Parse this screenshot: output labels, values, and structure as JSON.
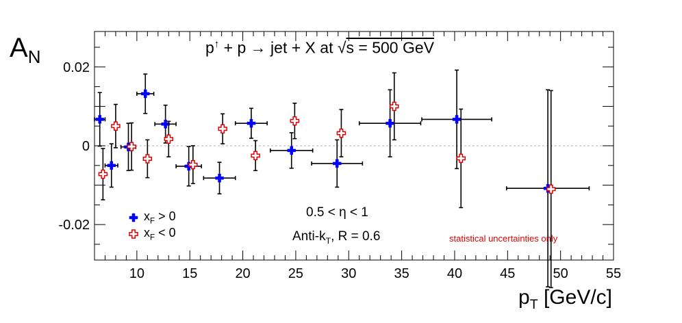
{
  "chart_data": {
    "type": "scatter",
    "title": "p↑ + p → jet + X at √s = 500 GeV",
    "title_parts": {
      "p": "p",
      "arrow": "↑",
      "rest": " + p → jet + X at ",
      "sqrt": "√",
      "s": "s = 500 GeV"
    },
    "xlabel": "p",
    "xlabel_sub": "T",
    "xlabel_unit": " [GeV/c]",
    "ylabel": "A",
    "ylabel_sub": "N",
    "xlim": [
      6,
      55
    ],
    "ylim": [
      -0.029,
      0.029
    ],
    "x_ticks": [
      10,
      15,
      20,
      25,
      30,
      35,
      40,
      45,
      50,
      55
    ],
    "y_ticks": [
      -0.02,
      0,
      0.02
    ],
    "y_tick_labels": [
      "-0.02",
      "0",
      "0.02"
    ],
    "grid": false,
    "zero_line": true,
    "legend_placement": "bottom-left",
    "colors": {
      "xf_pos": "#0000ff",
      "xf_neg": "#e00000",
      "zero": "#c0c0c0",
      "annotation": "#e00000"
    },
    "annotations": {
      "eta": "0.5 < η < 1",
      "algo_pre": "Anti-k",
      "algo_sub": "T",
      "algo_post": ", R = 0.6",
      "stat_note": "statistical uncertainties only"
    },
    "series": [
      {
        "name": "x_F > 0",
        "legend_main": "x",
        "legend_sub": "F",
        "legend_rest": " > 0",
        "marker": "filled-cross",
        "points": [
          {
            "x": 6.5,
            "y": 0.0067,
            "xerr": 0.5,
            "yerr": 0.0068
          },
          {
            "x": 7.6,
            "y": -0.005,
            "xerr": 0.6,
            "yerr": 0.0055
          },
          {
            "x": 9.2,
            "y": -0.0003,
            "xerr": 0.7,
            "yerr": 0.006
          },
          {
            "x": 10.8,
            "y": 0.0132,
            "xerr": 0.8,
            "yerr": 0.005
          },
          {
            "x": 12.7,
            "y": 0.0055,
            "xerr": 1.0,
            "yerr": 0.0048
          },
          {
            "x": 14.9,
            "y": -0.0052,
            "xerr": 1.2,
            "yerr": 0.005
          },
          {
            "x": 17.8,
            "y": -0.0082,
            "xerr": 1.5,
            "yerr": 0.004
          },
          {
            "x": 20.8,
            "y": 0.0057,
            "xerr": 1.5,
            "yerr": 0.0038
          },
          {
            "x": 24.6,
            "y": -0.0012,
            "xerr": 2.0,
            "yerr": 0.0045
          },
          {
            "x": 28.9,
            "y": -0.0045,
            "xerr": 2.4,
            "yerr": 0.006
          },
          {
            "x": 33.9,
            "y": 0.0057,
            "xerr": 2.9,
            "yerr": 0.0085
          },
          {
            "x": 40.2,
            "y": 0.0067,
            "xerr": 3.3,
            "yerr": 0.0125
          },
          {
            "x": 48.8,
            "y": -0.0108,
            "xerr": 3.9,
            "yerr": 0.025
          }
        ]
      },
      {
        "name": "x_F < 0",
        "legend_main": "x",
        "legend_sub": "F",
        "legend_rest": " < 0",
        "marker": "open-cross",
        "points": [
          {
            "x": 6.8,
            "y": -0.0072,
            "yerr": 0.0065
          },
          {
            "x": 8.0,
            "y": 0.005,
            "yerr": 0.0055
          },
          {
            "x": 9.5,
            "y": -0.0002,
            "yerr": 0.006
          },
          {
            "x": 11.0,
            "y": -0.0033,
            "yerr": 0.0048
          },
          {
            "x": 13.0,
            "y": 0.0017,
            "yerr": 0.0045
          },
          {
            "x": 15.3,
            "y": -0.0048,
            "yerr": 0.0048
          },
          {
            "x": 18.1,
            "y": 0.0043,
            "yerr": 0.0038
          },
          {
            "x": 21.2,
            "y": -0.0025,
            "yerr": 0.0038
          },
          {
            "x": 24.9,
            "y": 0.0063,
            "yerr": 0.0045
          },
          {
            "x": 29.3,
            "y": 0.0032,
            "yerr": 0.006
          },
          {
            "x": 34.3,
            "y": 0.01,
            "yerr": 0.0085
          },
          {
            "x": 40.6,
            "y": -0.0032,
            "yerr": 0.0125
          },
          {
            "x": 49.1,
            "y": -0.011,
            "yerr": 0.025
          }
        ]
      }
    ]
  }
}
